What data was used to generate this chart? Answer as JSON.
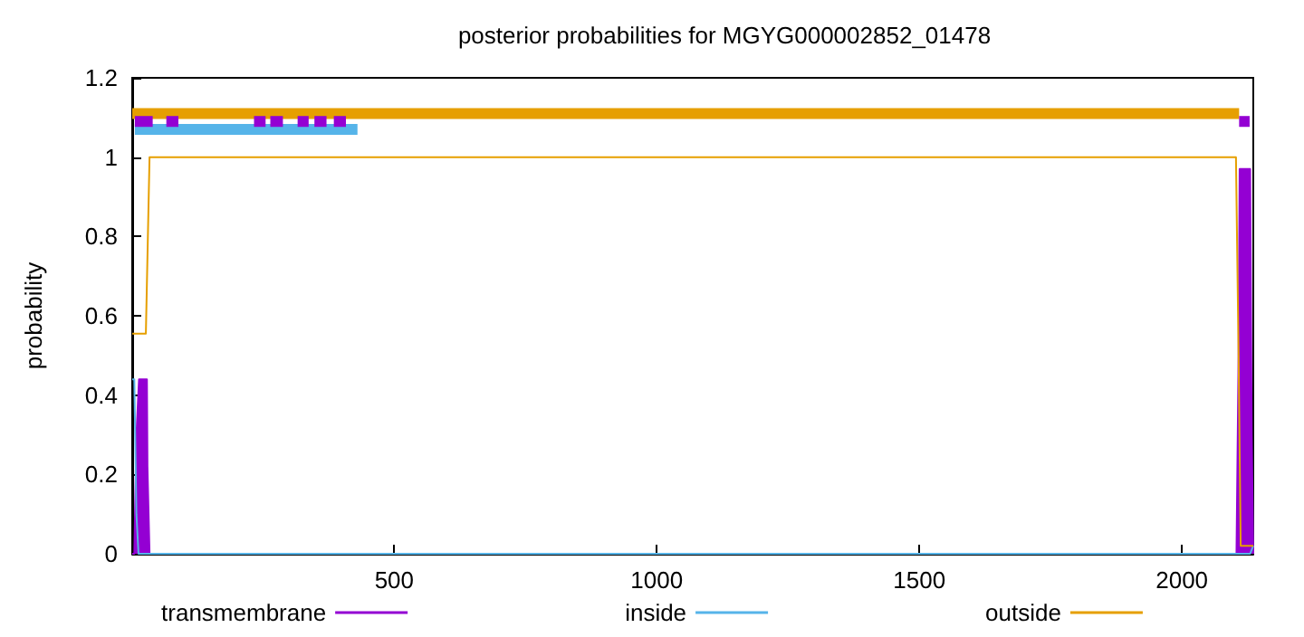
{
  "chart_data": {
    "type": "line",
    "title": "posterior probabilities for MGYG000002852_01478",
    "ylabel": "probability",
    "xlim": [
      1,
      2136
    ],
    "xticks": [
      500,
      1000,
      1500,
      2000
    ],
    "ylim": [
      0,
      1.2
    ],
    "yticks": [
      0,
      0.2,
      0.4,
      0.6,
      0.8,
      1,
      1.2
    ],
    "grid": false,
    "legend": "bottom",
    "marker": "none",
    "series": [
      {
        "name": "transmembrane",
        "type": "area",
        "color": "#9400d3",
        "x": [
          1,
          5,
          9,
          14,
          29,
          30,
          32,
          34,
          2100,
          2104,
          2108,
          2110,
          2130,
          2133,
          2136
        ],
        "values": [
          0,
          0,
          0.3,
          0.44,
          0.44,
          0.22,
          0.22,
          0,
          0,
          0,
          0.5,
          0.97,
          0.97,
          0.3,
          0
        ]
      },
      {
        "name": "inside",
        "color": "#56b4e9",
        "x": [
          1,
          5,
          9,
          13,
          2130,
          2136
        ],
        "values": [
          0.44,
          0.44,
          0.1,
          0,
          0,
          0.02
        ]
      },
      {
        "name": "outside",
        "color": "#e69f00",
        "x": [
          1,
          27,
          34,
          2103,
          2108,
          2112,
          2136
        ],
        "values": [
          0.555,
          0.555,
          1,
          1,
          0.5,
          0.02,
          0.02
        ]
      },
      {
        "color": "#e69f00",
        "x": [
          1,
          2109
        ],
        "values": [
          1.11,
          1.11
        ]
      },
      {
        "color": "#56b4e9",
        "x": [
          6,
          430
        ],
        "values": [
          1.07,
          1.07
        ]
      },
      {
        "color": "#9400d3",
        "x": [
          6,
          40
        ],
        "values": [
          1.09,
          1.09
        ]
      },
      {
        "color": "#9400d3",
        "x": [
          66,
          89
        ],
        "values": [
          1.09,
          1.09
        ]
      },
      {
        "color": "#9400d3",
        "x": [
          233,
          255
        ],
        "values": [
          1.09,
          1.09
        ]
      },
      {
        "color": "#9400d3",
        "x": [
          264,
          288
        ],
        "values": [
          1.09,
          1.09
        ]
      },
      {
        "color": "#9400d3",
        "x": [
          316,
          337
        ],
        "values": [
          1.09,
          1.09
        ]
      },
      {
        "color": "#9400d3",
        "x": [
          348,
          371
        ],
        "values": [
          1.09,
          1.09
        ]
      },
      {
        "color": "#9400d3",
        "x": [
          385,
          408
        ],
        "values": [
          1.09,
          1.09
        ]
      },
      {
        "color": "#9400d3",
        "x": [
          2109,
          2129
        ],
        "values": [
          1.09,
          1.09
        ]
      }
    ]
  }
}
